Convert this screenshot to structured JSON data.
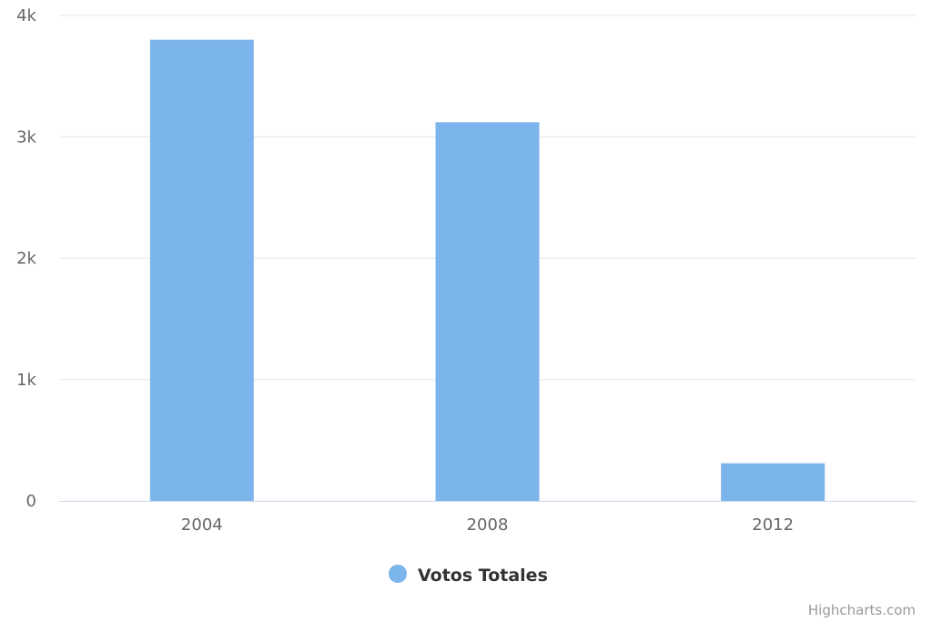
{
  "chart_data": {
    "type": "bar",
    "categories": [
      "2004",
      "2008",
      "2012"
    ],
    "series": [
      {
        "name": "Votos Totales",
        "values": [
          3800,
          3120,
          310
        ],
        "color": "#7cb5ec"
      }
    ],
    "ylim": [
      0,
      4000
    ],
    "yticks": [
      0,
      1000,
      2000,
      3000,
      4000
    ],
    "ytick_labels": [
      "0",
      "1k",
      "2k",
      "3k",
      "4k"
    ],
    "grid": true,
    "legend": "bottom-center",
    "title": "",
    "xlabel": "",
    "ylabel": ""
  },
  "credits": "Highcharts.com"
}
